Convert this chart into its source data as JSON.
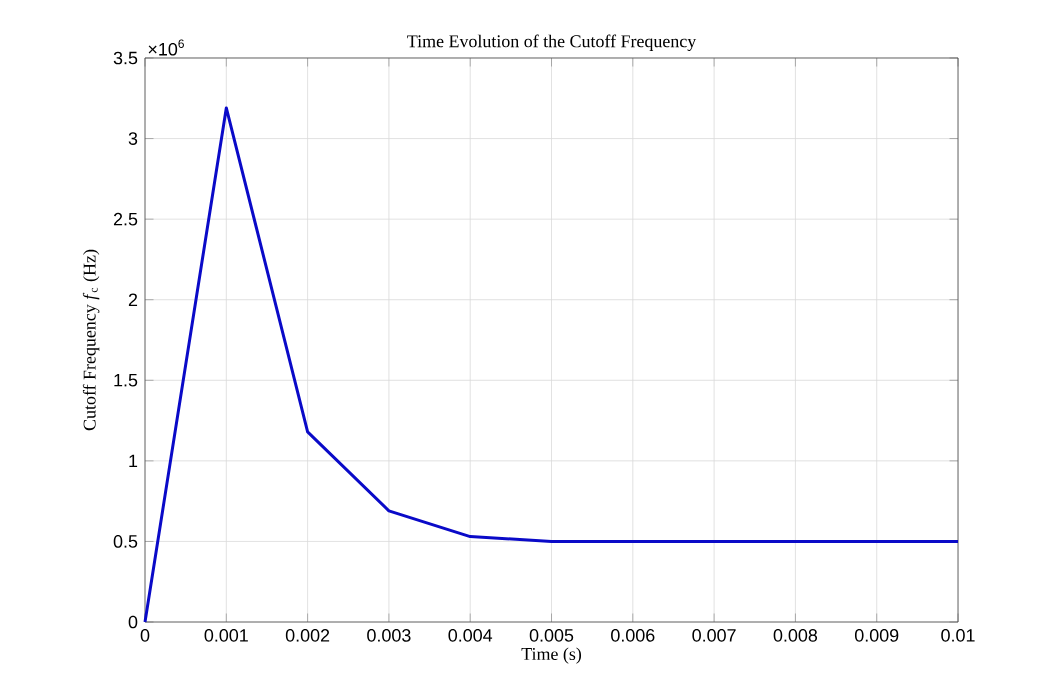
{
  "chart_data": {
    "type": "line",
    "title": "Time Evolution of the Cutoff Frequency",
    "xlabel": "Time (s)",
    "ylabel": "Cutoff Frequency *f*$_{c}$ (Hz)",
    "annotations": [
      "×10$^{6}$"
    ],
    "x": [
      0,
      0.001,
      0.002,
      0.003,
      0.004,
      0.005,
      0.006,
      0.007,
      0.008,
      0.009,
      0.01
    ],
    "series": [
      {
        "color": "#0a0ac8",
        "values": [
          0,
          3.19,
          1.18,
          0.69,
          0.53,
          0.5,
          0.5,
          0.5,
          0.5,
          0.5,
          0.5
        ]
      }
    ],
    "xlim": [
      0,
      0.01
    ],
    "ylim": [
      0,
      3.5
    ],
    "xticks": [
      0,
      0.001,
      0.002,
      0.003,
      0.004,
      0.005,
      0.006,
      0.007,
      0.008,
      0.009,
      0.01
    ],
    "yticks": [
      0,
      0.5,
      1,
      1.5,
      2,
      2.5,
      3,
      3.5
    ],
    "grid": true
  }
}
